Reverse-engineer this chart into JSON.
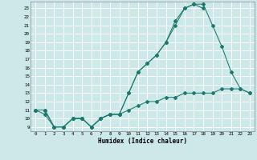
{
  "xlabel": "Humidex (Indice chaleur)",
  "bg_color": "#cce8e8",
  "grid_color": "#ffffff",
  "line_color": "#1a7a6e",
  "xlim": [
    -0.5,
    23.5
  ],
  "ylim": [
    8.5,
    23.8
  ],
  "xticks": [
    0,
    1,
    2,
    3,
    4,
    5,
    6,
    7,
    8,
    9,
    10,
    11,
    12,
    13,
    14,
    15,
    16,
    17,
    18,
    19,
    20,
    21,
    22,
    23
  ],
  "yticks": [
    9,
    10,
    11,
    12,
    13,
    14,
    15,
    16,
    17,
    18,
    19,
    20,
    21,
    22,
    23
  ],
  "line1_x": [
    0,
    1,
    2,
    3,
    4,
    5,
    6,
    7,
    8,
    9,
    10,
    11,
    12,
    13,
    14,
    15,
    16,
    17,
    18
  ],
  "line1_y": [
    11,
    11,
    9,
    9,
    10,
    10,
    9,
    10,
    10.5,
    10.5,
    13,
    15.5,
    16.5,
    17.5,
    19,
    21,
    23,
    23.5,
    23
  ],
  "line2_x": [
    0,
    1,
    2,
    3,
    4,
    5,
    6,
    7,
    8,
    9,
    10,
    11,
    12,
    13,
    14,
    15,
    16,
    17,
    18,
    19,
    20,
    21,
    22,
    23
  ],
  "line2_y": [
    11,
    11,
    9,
    9,
    10,
    10,
    9,
    10,
    10.5,
    10.5,
    13,
    15.5,
    16.5,
    17.5,
    19,
    21.5,
    23,
    23.5,
    23.5,
    21,
    18.5,
    15.5,
    13.5,
    13
  ],
  "line3_x": [
    0,
    1,
    2,
    3,
    4,
    5,
    6,
    7,
    8,
    9,
    10,
    11,
    12,
    13,
    14,
    15,
    16,
    17,
    18,
    19,
    20,
    21,
    22,
    23
  ],
  "line3_y": [
    11,
    10.5,
    9,
    9,
    10,
    10,
    9,
    10,
    10.5,
    10.5,
    11,
    11.5,
    12,
    12,
    12.5,
    12.5,
    13,
    13,
    13,
    13,
    13.5,
    13.5,
    13.5,
    13
  ]
}
